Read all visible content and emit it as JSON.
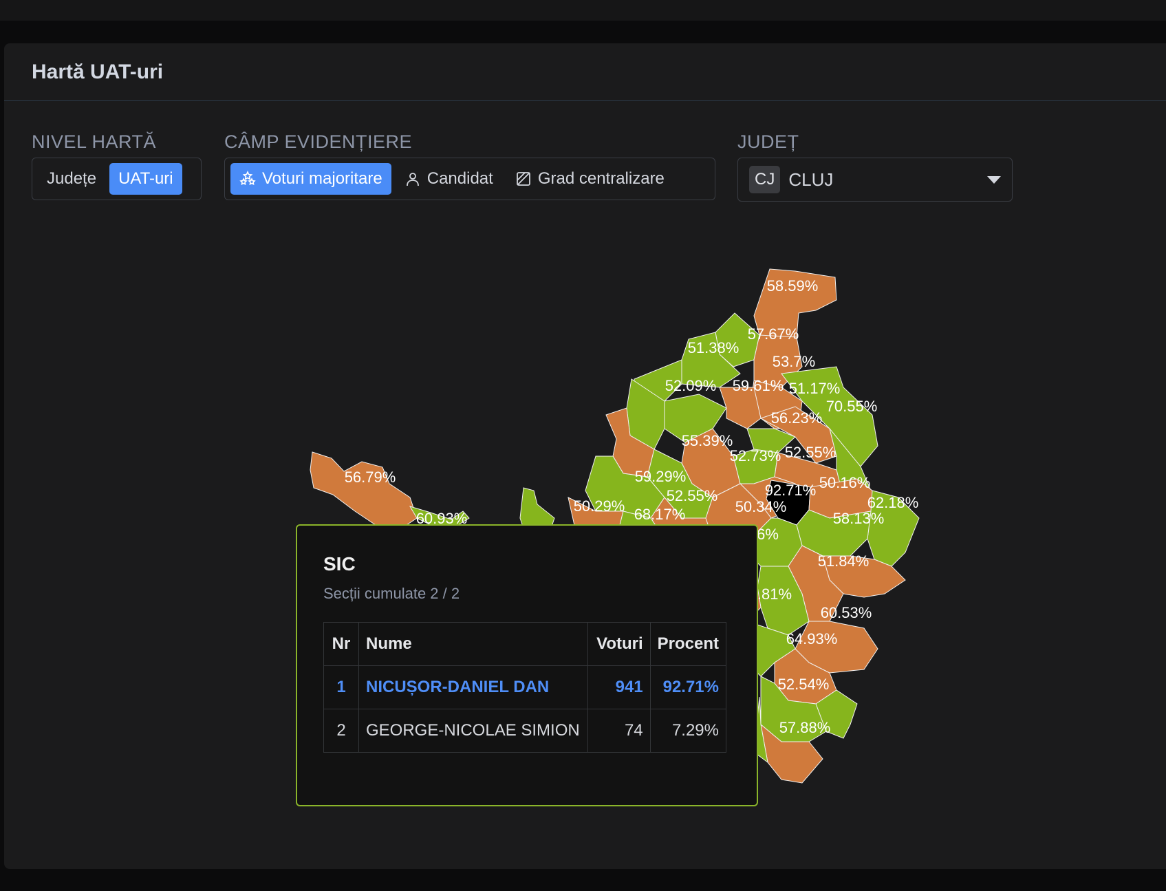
{
  "panel": {
    "title": "Hartă UAT-uri"
  },
  "controls": {
    "map_level": {
      "label": "NIVEL HARTĂ",
      "options": [
        "Județe",
        "UAT-uri"
      ],
      "selected": "UAT-uri"
    },
    "highlight": {
      "label": "CÂMP EVIDENȚIERE",
      "options": [
        {
          "label": "Voturi majoritare",
          "icon": "stars-icon"
        },
        {
          "label": "Candidat",
          "icon": "person-icon"
        },
        {
          "label": "Grad centralizare",
          "icon": "hatch-square-icon"
        }
      ],
      "selected": "Voturi majoritare"
    },
    "county": {
      "label": "JUDEȚ",
      "badge": "CJ",
      "value": "CLUJ"
    }
  },
  "colors": {
    "orange": "#d07a3c",
    "green": "#86b51d",
    "selected": "#000000",
    "accent": "#4a8cf7"
  },
  "map": {
    "labels": [
      "58.59%",
      "57.67%",
      "51.38%",
      "53.7%",
      "52.09%",
      "59.61%",
      "51.17%",
      "70.55%",
      "56.23%",
      "55.39%",
      "52.73%",
      "52.55%",
      "56.79%",
      "59.29%",
      "52.55%",
      "50.16%",
      "92.71%",
      "62.18%",
      "50.29%",
      "68.17%",
      "50.34%",
      "58.13%",
      "60.93%",
      "6%",
      "51.84%",
      ".81%",
      "60.53%",
      "64.93%",
      "52.54%",
      "57.88%"
    ]
  },
  "tooltip": {
    "title": "SIC",
    "subtitle": "Secții cumulate 2 / 2",
    "columns": [
      "Nr",
      "Nume",
      "Voturi",
      "Procent"
    ],
    "rows": [
      {
        "nr": "1",
        "name": "NICUȘOR-DANIEL DAN",
        "votes": "941",
        "percent": "92.71%"
      },
      {
        "nr": "2",
        "name": "GEORGE-NICOLAE SIMION",
        "votes": "74",
        "percent": "7.29%"
      }
    ]
  }
}
